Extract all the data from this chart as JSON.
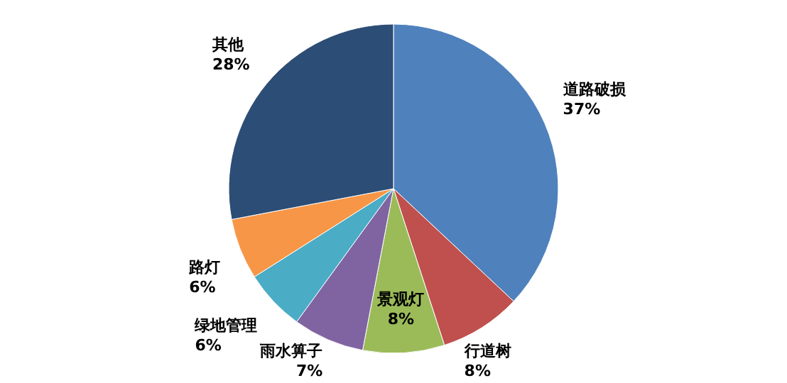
{
  "chart_data": {
    "type": "pie",
    "categories": [
      "道路破损",
      "行道树",
      "景观灯",
      "雨水箅子",
      "绿地管理",
      "路灯",
      "其他"
    ],
    "values": [
      37,
      8,
      8,
      7,
      6,
      6,
      28
    ],
    "value_labels": [
      "37%",
      "8%",
      "8%",
      "7%",
      "6%",
      "6%",
      "28%"
    ],
    "colors": [
      "#4f81bd",
      "#c0504d",
      "#9bbb59",
      "#8064a2",
      "#4bacc6",
      "#f79646",
      "#2c4d75"
    ]
  }
}
